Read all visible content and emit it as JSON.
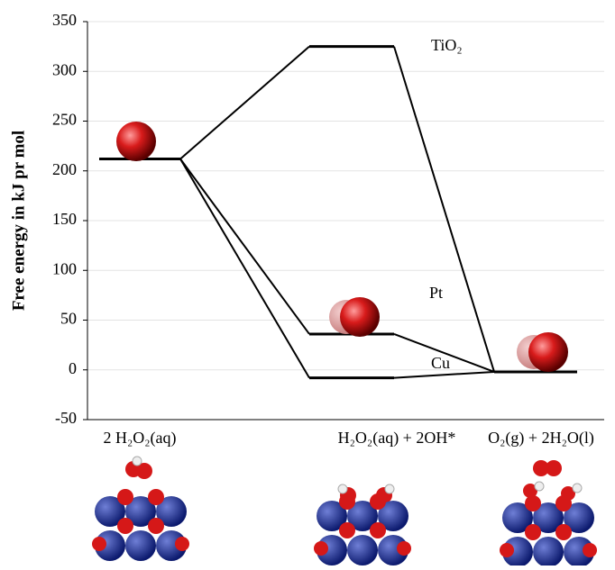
{
  "chart_data": {
    "type": "energy-levels",
    "y_label": "Free energy in kJ pr mol",
    "categories": [
      "2 H₂O₂(aq)",
      "H₂O₂(aq) + 2OH*",
      "O₂(g) + 2H₂O(l)"
    ],
    "series": [
      {
        "name": "TiO₂",
        "color": "#000000",
        "values": [
          212,
          325,
          -2
        ]
      },
      {
        "name": "Pt",
        "color": "#000000",
        "values": [
          212,
          36,
          -2
        ]
      },
      {
        "name": "Cu",
        "color": "#000000",
        "values": [
          212,
          -8,
          -2
        ]
      }
    ],
    "ylim": [
      -50,
      350
    ],
    "yticks": [
      -50,
      0,
      50,
      100,
      150,
      200,
      250,
      300,
      350
    ],
    "grid": true
  }
}
